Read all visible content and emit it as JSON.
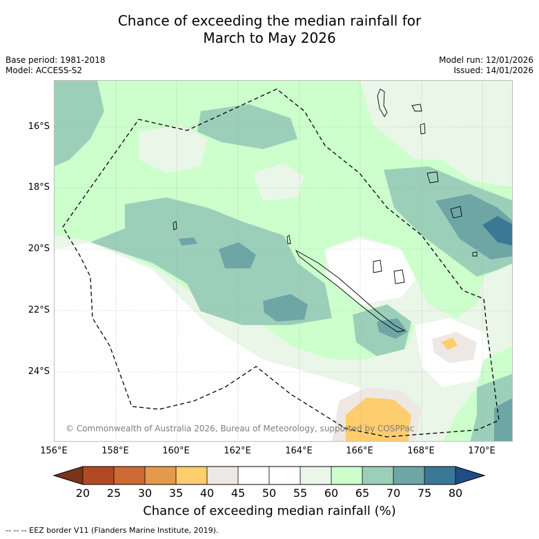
{
  "title": {
    "line1": "Chance of exceeding the median rainfall for",
    "line2": "March to May 2026"
  },
  "meta": {
    "base_period": "Base period: 1981-2018",
    "model": "Model: ACCESS-S2",
    "model_run": "Model run: 12/01/2026",
    "issued": "Issued: 14/01/2026"
  },
  "map": {
    "lat_labels": [
      "16°S",
      "18°S",
      "20°S",
      "22°S",
      "24°S"
    ],
    "lon_labels": [
      "156°E",
      "158°E",
      "160°E",
      "162°E",
      "164°E",
      "166°E",
      "168°E",
      "170°E"
    ],
    "copyright": "© Commonwealth of Australia 2026, Bureau of Meteorology, supported by COSPPac"
  },
  "colorbar": {
    "ticks": [
      "20",
      "25",
      "30",
      "35",
      "40",
      "45",
      "50",
      "55",
      "60",
      "65",
      "70",
      "75",
      "80"
    ],
    "label": "Chance of exceeding median rainfall (%)",
    "colors": {
      "c_15_20": "#7a3518",
      "c_20_25": "#b04a24",
      "c_25_30": "#cc6a35",
      "c_30_35": "#e39a4d",
      "c_35_40": "#fdcd6e",
      "c_40_45": "#ede8e3",
      "c_45_50": "#ffffff",
      "c_50_55": "#ffffff",
      "c_55_60": "#e9f6e8",
      "c_60_65": "#ccffcc",
      "c_65_70": "#9ccfba",
      "c_70_75": "#6ea6a6",
      "c_75_80": "#3b7896",
      "c_80_85": "#1f4e85"
    }
  },
  "legend": {
    "eez_text": "-- -- -- EEZ border V11 (Flanders Marine Institute, 2019)."
  }
}
